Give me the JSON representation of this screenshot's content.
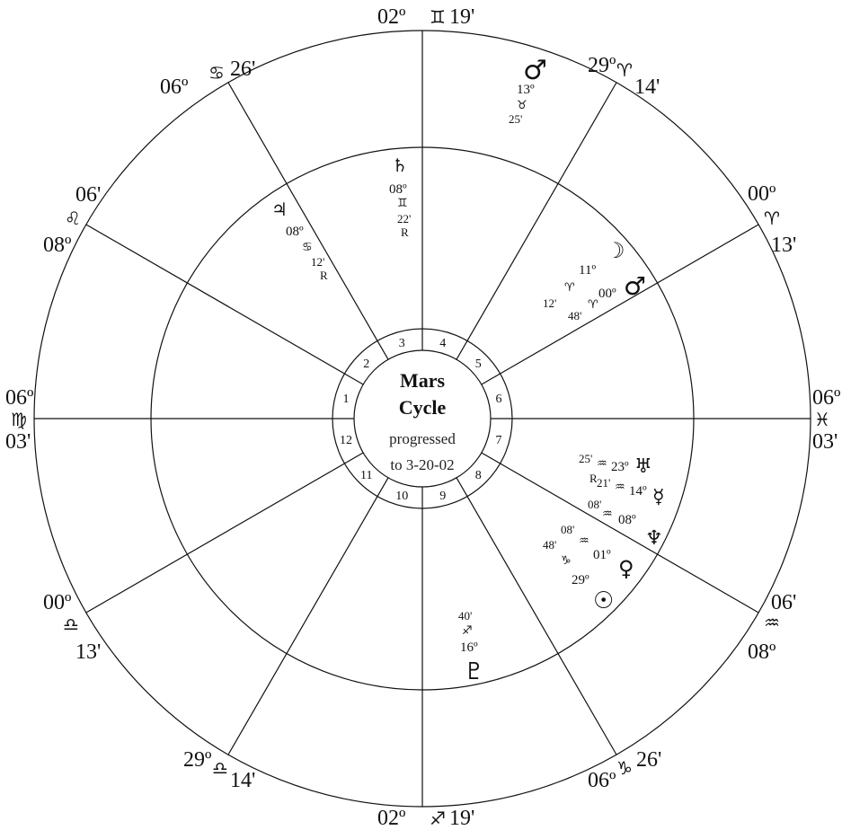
{
  "center": {
    "title_line1": "Mars",
    "title_line2": "Cycle",
    "sub_line1": "progressed",
    "sub_line2": "to 3-20-02"
  },
  "houses": [
    "1",
    "2",
    "3",
    "4",
    "5",
    "6",
    "7",
    "8",
    "9",
    "10",
    "11",
    "12"
  ],
  "cusps": {
    "top": {
      "deg": "02º",
      "sign": "♊",
      "min": "19'"
    },
    "bottom": {
      "deg": "02º",
      "sign": "♐",
      "min": "19'"
    },
    "left": {
      "deg": "06º",
      "sign": "♍",
      "min": "03'"
    },
    "right": {
      "deg": "06º",
      "sign": "♓",
      "min": "03'"
    },
    "upper_left": {
      "deg": "06º",
      "sign": "♋",
      "min": "26'"
    },
    "upper_right": {
      "deg": "29º",
      "sign": "♈",
      "min": "14'"
    },
    "left_upper": {
      "deg": "08º",
      "sign": "♌",
      "min": "06'"
    },
    "right_upper": {
      "deg": "00º",
      "sign": "♈",
      "min": "13'"
    },
    "left_lower": {
      "deg": "00º",
      "sign": "♎",
      "min": "13'"
    },
    "right_lower": {
      "deg": "08º",
      "sign": "♒",
      "min": "06'"
    },
    "lower_left": {
      "deg": "29º",
      "sign": "♎",
      "min": "14'"
    },
    "lower_right": {
      "deg": "06º",
      "sign": "♑",
      "min": "26'"
    }
  },
  "planets": {
    "mars_outer": {
      "glyph": "♂",
      "deg": "13º",
      "sign": "♉",
      "min": "25'"
    },
    "saturn": {
      "glyph": "♄",
      "deg": "08º",
      "sign": "♊",
      "min": "22'",
      "retro": "R"
    },
    "jupiter": {
      "glyph": "♃",
      "deg": "08º",
      "sign": "♋",
      "min": "12'",
      "retro": "R"
    },
    "moon": {
      "glyph": "☽",
      "deg": "11º",
      "sign": "♈",
      "min": "12'"
    },
    "mars_inner": {
      "glyph": "♂",
      "deg": "00º",
      "sign": "♈",
      "min": "48'"
    },
    "uranus": {
      "glyph": "♅",
      "deg": "23º",
      "sign": "♒",
      "min": "25'"
    },
    "mercury": {
      "glyph": "☿",
      "deg": "14º",
      "sign": "♒",
      "min": "21'",
      "retro": "R"
    },
    "neptune": {
      "glyph": "♆",
      "deg": "08º",
      "sign": "♒",
      "min": "08'"
    },
    "venus": {
      "glyph": "♀",
      "deg": "01º",
      "sign": "♒",
      "min": "08'"
    },
    "sun": {
      "glyph": "☉",
      "deg": "29º",
      "sign": "♑",
      "min": "48'"
    },
    "pluto": {
      "glyph": "♇",
      "deg": "16º",
      "sign": "♐",
      "min": "40'"
    }
  }
}
